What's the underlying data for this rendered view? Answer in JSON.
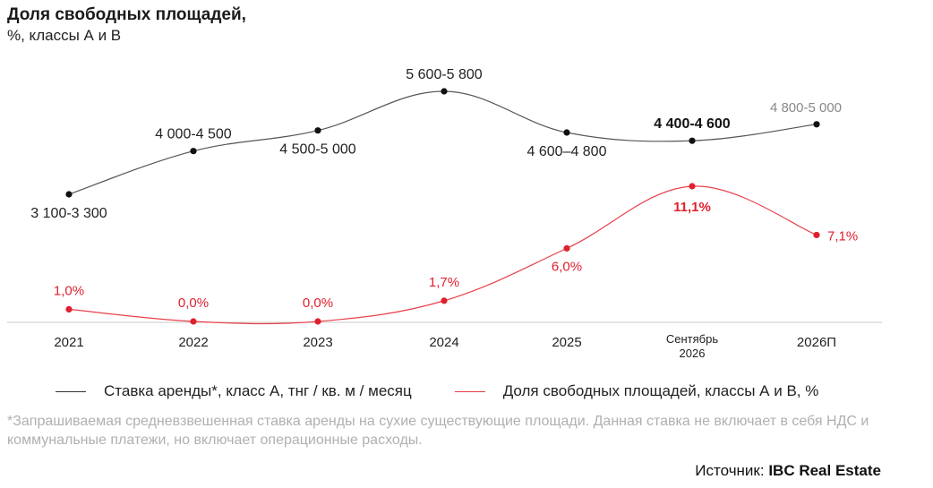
{
  "title": "Доля свободных площадей,",
  "subtitle": "%, классы А и В",
  "chart_data": {
    "type": "line",
    "categories": [
      "2021",
      "2022",
      "2023",
      "2024",
      "2025",
      "Сентябрь 2026",
      "2026П"
    ],
    "series": [
      {
        "name": "Ставка аренды*, класс А, тнг / кв. м / месяц",
        "color": "#1a1a1a",
        "values": [
          3200,
          4250,
          4750,
          5700,
          4700,
          4500,
          4900
        ],
        "labels": [
          "3 100-3 300",
          "4 000-4 500",
          "4 500-5 000",
          "5 600-5 800",
          "4 600–4 800",
          "4 400-4 600",
          "4 800-5 000"
        ]
      },
      {
        "name": "Доля свободных площадей, классы А и В, %",
        "color": "#e0202e",
        "values": [
          1.0,
          0.0,
          0.0,
          1.7,
          6.0,
          11.1,
          7.1
        ],
        "labels": [
          "1,0%",
          "0,0%",
          "0,0%",
          "1,7%",
          "6,0%",
          "11,1%",
          "7,1%"
        ]
      }
    ]
  },
  "footnote": "*Запрашиваемая средневзвешенная ставка аренды на сухие существующие площади. Данная ставка не включает в себя НДС и коммунальные платежи, но включает операционные расходы.",
  "source_label": "Источник:",
  "source_value": "IBC Real Estate"
}
